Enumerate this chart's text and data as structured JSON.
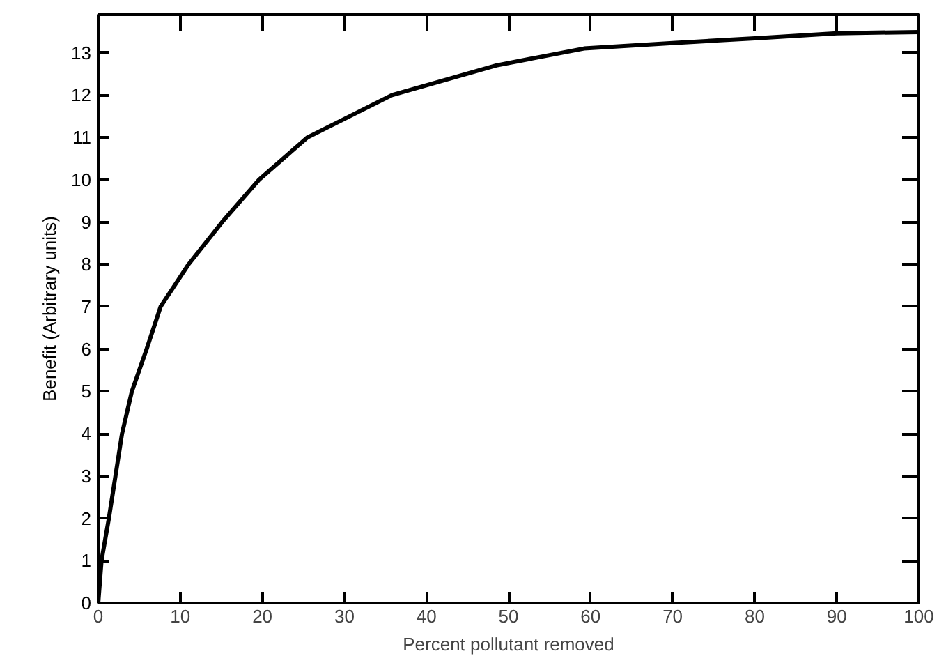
{
  "chart_data": {
    "type": "line",
    "xlabel": "Percent pollutant removed",
    "ylabel": "Benefit (Arbitrary units)",
    "x": [
      0,
      0.4,
      1.3,
      2.1,
      2.9,
      4.1,
      5.9,
      7.6,
      11,
      15.1,
      19.6,
      25.5,
      35.8,
      48.5,
      59.2,
      70,
      80,
      90,
      100
    ],
    "series": [
      {
        "color": "#000000",
        "values": [
          0,
          1,
          2,
          3,
          4,
          5,
          6,
          7,
          8,
          9,
          10,
          11,
          12,
          12.7,
          13.1,
          13.23,
          13.34,
          13.46,
          13.49
        ]
      }
    ],
    "xlim": [
      0,
      100
    ],
    "ylim": [
      0,
      13.9
    ],
    "xticks": [
      0,
      10,
      20,
      30,
      40,
      50,
      60,
      70,
      80,
      90,
      100
    ],
    "yticks": [
      0,
      1,
      2,
      3,
      4,
      5,
      6,
      7,
      8,
      9,
      10,
      11,
      12,
      13
    ],
    "grid": false,
    "marker": "none",
    "line_style": "solid"
  }
}
